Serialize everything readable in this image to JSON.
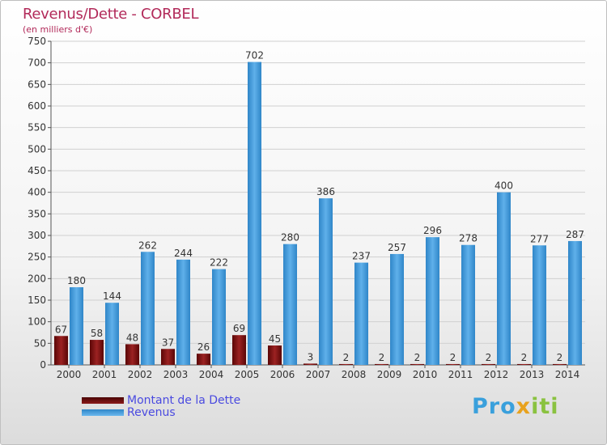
{
  "header": {
    "title": "Revenus/Dette - CORBEL",
    "subtitle": "(en milliers d'€)"
  },
  "legend": {
    "items": [
      {
        "label": "Montant de la Dette",
        "color": "#7a1010"
      },
      {
        "label": "Revenus",
        "color": "#3f97d6"
      }
    ]
  },
  "logo": {
    "text": "Proxiti"
  },
  "colors": {
    "debt": "#7a1010",
    "revenue": "#3f97d6",
    "axis_text": "#333333",
    "grid": "#d0d0d0"
  },
  "chart_data": {
    "type": "bar",
    "title": "Revenus/Dette - CORBEL",
    "subtitle": "(en milliers d'€)",
    "xlabel": "",
    "ylabel": "",
    "ylim": [
      0,
      750
    ],
    "yticks": [
      0,
      50,
      100,
      150,
      200,
      250,
      300,
      350,
      400,
      450,
      500,
      550,
      600,
      650,
      700,
      750
    ],
    "grid": "horizontal",
    "legend_position": "bottom-left",
    "categories": [
      "2000",
      "2001",
      "2002",
      "2003",
      "2004",
      "2005",
      "2006",
      "2007",
      "2008",
      "2009",
      "2010",
      "2011",
      "2012",
      "2013",
      "2014"
    ],
    "series": [
      {
        "name": "Montant de la Dette",
        "values": [
          67,
          58,
          48,
          37,
          26,
          69,
          45,
          3,
          2,
          2,
          2,
          2,
          2,
          2,
          2
        ]
      },
      {
        "name": "Revenus",
        "values": [
          180,
          144,
          262,
          244,
          222,
          702,
          280,
          386,
          237,
          257,
          296,
          278,
          400,
          277,
          287
        ]
      }
    ]
  }
}
